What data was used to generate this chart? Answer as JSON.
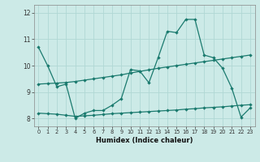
{
  "xlabel": "Humidex (Indice chaleur)",
  "bg_color": "#cceae7",
  "grid_color": "#b0d8d4",
  "line_color": "#1a7a6e",
  "xlim": [
    -0.5,
    23.5
  ],
  "ylim": [
    7.7,
    12.3
  ],
  "yticks": [
    8,
    9,
    10,
    11,
    12
  ],
  "xticks": [
    0,
    1,
    2,
    3,
    4,
    5,
    6,
    7,
    8,
    9,
    10,
    11,
    12,
    13,
    14,
    15,
    16,
    17,
    18,
    19,
    20,
    21,
    22,
    23
  ],
  "series1_y": [
    10.7,
    10.0,
    9.2,
    9.3,
    8.0,
    8.2,
    8.3,
    8.3,
    8.5,
    8.75,
    9.85,
    9.8,
    9.35,
    10.3,
    11.3,
    11.25,
    11.75,
    11.75,
    10.4,
    10.3,
    9.9,
    9.15,
    8.05,
    8.4
  ],
  "series2_y": [
    9.3,
    9.32,
    9.34,
    9.36,
    9.4,
    9.45,
    9.5,
    9.55,
    9.6,
    9.65,
    9.72,
    9.78,
    9.84,
    9.9,
    9.95,
    10.0,
    10.05,
    10.1,
    10.15,
    10.2,
    10.25,
    10.3,
    10.35,
    10.4
  ],
  "series3_y": [
    8.2,
    8.18,
    8.16,
    8.12,
    8.08,
    8.1,
    8.12,
    8.15,
    8.18,
    8.2,
    8.22,
    8.24,
    8.26,
    8.28,
    8.3,
    8.32,
    8.35,
    8.37,
    8.4,
    8.42,
    8.44,
    8.47,
    8.5,
    8.52
  ]
}
